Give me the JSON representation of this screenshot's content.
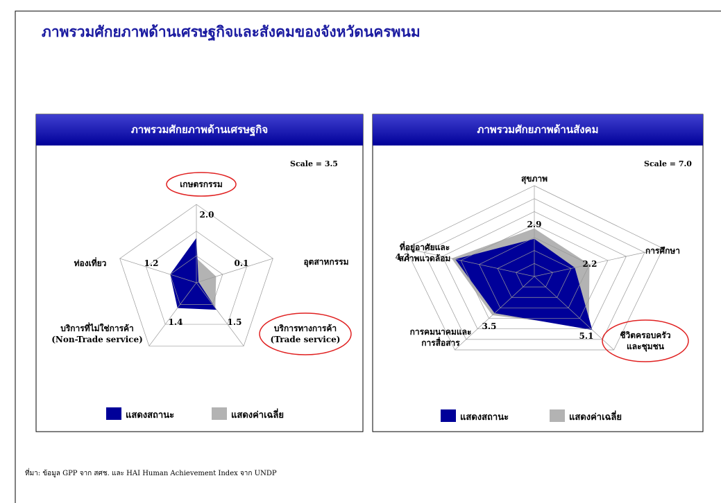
{
  "header": {
    "title": "ภาพรวมศักยภาพด้านเศรษฐกิจและสังคมของจังหวัดนครพนม"
  },
  "chart_data": [
    {
      "type": "radar",
      "title": "ภาพรวมศักยภาพด้านเศรษฐกิจ",
      "scale_label": "Scale = 3.5",
      "categories": [
        "เกษตรกรรม",
        "อุตสาหกรรม",
        "บริการทางการค้า\n(Trade service)",
        "บริการที่ไม่ใช่การค้า\n(Non-Trade service)",
        "ท่องเที่ยว"
      ],
      "series": [
        {
          "name": "แสดงสถานะ",
          "color": "#000099",
          "values": [
            2.0,
            0.1,
            1.5,
            1.4,
            1.2
          ],
          "value_labels": [
            "2.0",
            "0.1",
            "1.5",
            "1.4",
            "1.2"
          ]
        },
        {
          "name": "แสดงค่าเฉลี่ย",
          "color": "#b3b3b3",
          "values": [
            1.1,
            0.9,
            1.4,
            1.2,
            1.0
          ]
        }
      ],
      "rlim": [
        0,
        3.5
      ],
      "rticks": [
        1.2,
        2.3,
        3.5
      ]
    },
    {
      "type": "radar",
      "title": "ภาพรวมศักยภาพด้านสังคม",
      "scale_label": "Scale = 7.0",
      "categories": [
        "สุขภาพ",
        "การศึกษา",
        "ชีวิตครอบครัว\nและชุมชน",
        "การคมนาคมและ\nการสื่อสาร",
        "ที่อยู่อาศัยและ\nสภาพแวดล้อม"
      ],
      "series": [
        {
          "name": "แสดงสถานะ",
          "color": "#000099",
          "values": [
            2.9,
            2.2,
            5.1,
            3.5,
            4.3
          ],
          "value_labels": [
            "2.9",
            "2.2",
            "5.1",
            "3.5",
            "4.3"
          ]
        },
        {
          "name": "แสดงค่าเฉลี่ย",
          "color": "#b3b3b3",
          "values": [
            3.7,
            3.0,
            4.8,
            3.7,
            4.5
          ]
        }
      ],
      "rlim": [
        0,
        7
      ],
      "rticks": [
        1,
        2,
        3,
        4,
        5,
        6,
        7
      ]
    }
  ],
  "footer": {
    "source": "ที่มา: ข้อมูล GPP จาก สศช. และ HAI Human Achievement Index จาก UNDP"
  }
}
